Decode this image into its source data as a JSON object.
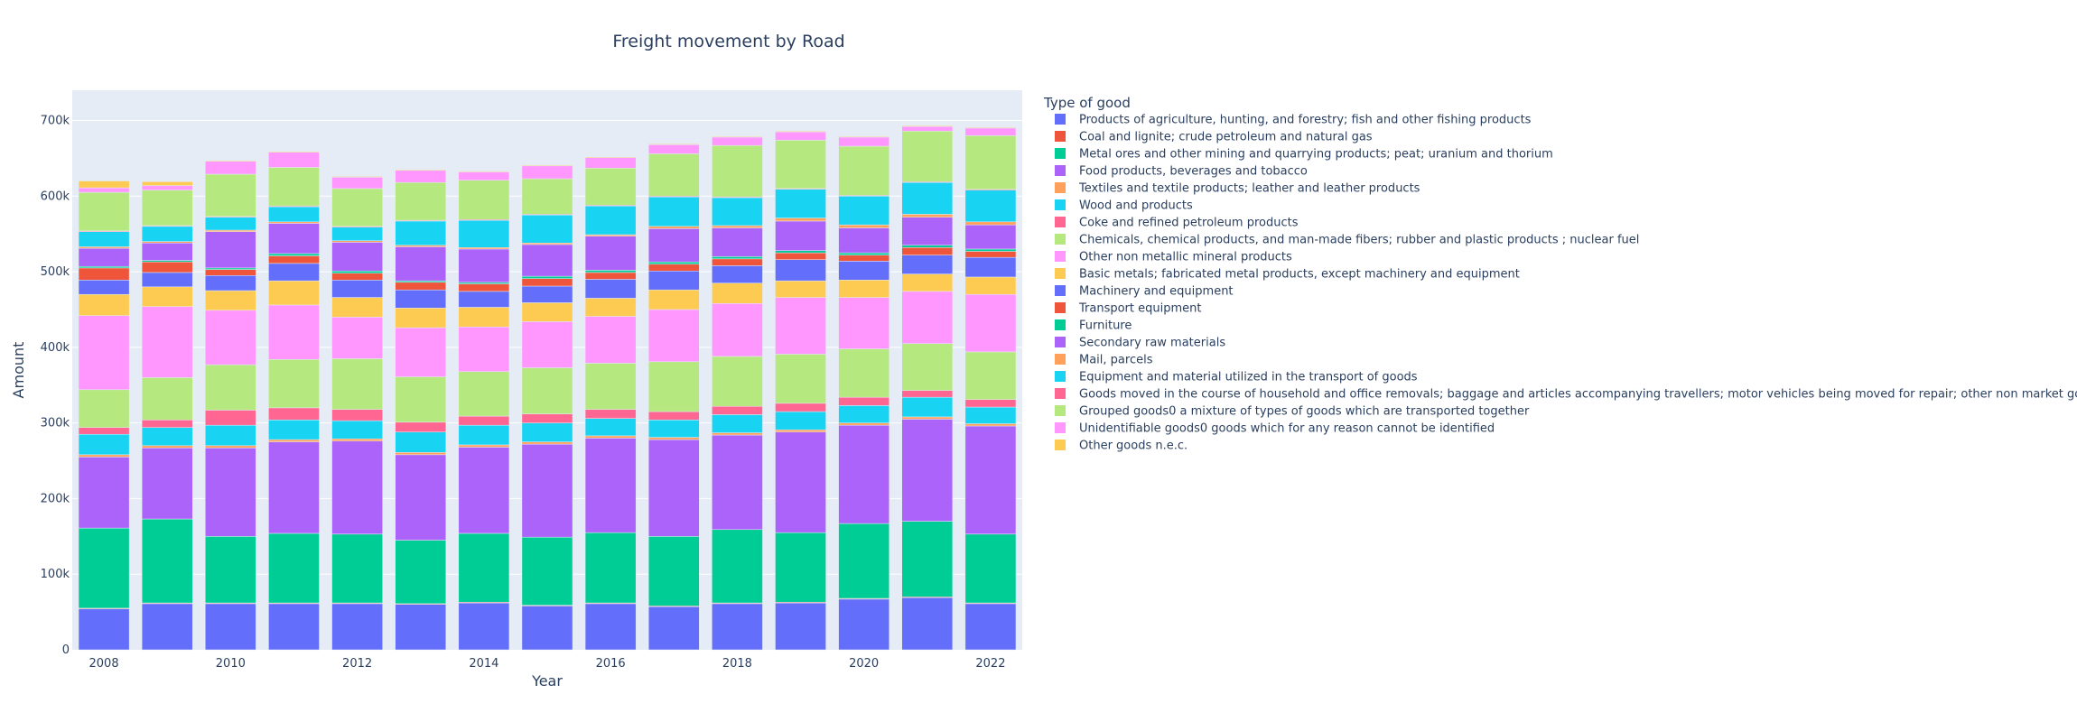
{
  "chart_data": {
    "type": "bar",
    "stacked": true,
    "title": "Freight movement by Road",
    "xlabel": "Year",
    "ylabel": "Amount",
    "legend_title": "Type of good",
    "legend_position": "right",
    "grid": true,
    "ylim": [
      0,
      740000
    ],
    "yticks": [
      0,
      100000,
      200000,
      300000,
      400000,
      500000,
      600000,
      700000
    ],
    "ytick_labels": [
      "0",
      "100k",
      "200k",
      "300k",
      "400k",
      "500k",
      "600k",
      "700k"
    ],
    "xlim": [
      2007.5,
      2022.5
    ],
    "xticks": [
      2008,
      2010,
      2012,
      2014,
      2016,
      2018,
      2020,
      2022
    ],
    "xtick_labels": [
      "2008",
      "2010",
      "2012",
      "2014",
      "2016",
      "2018",
      "2020",
      "2022"
    ],
    "categories": [
      2008,
      2009,
      2010,
      2011,
      2012,
      2013,
      2014,
      2015,
      2016,
      2017,
      2018,
      2019,
      2020,
      2021,
      2022
    ],
    "series": [
      {
        "name": "Products of agriculture, hunting, and forestry; fish and other fishing products",
        "color": "#636efa",
        "values": [
          54000,
          61000,
          61000,
          61000,
          61000,
          60000,
          62000,
          58000,
          61000,
          57000,
          61000,
          62000,
          67000,
          69000,
          61000
        ]
      },
      {
        "name": "Coal and lignite; crude petroleum and natural gas",
        "color": "#EF553B",
        "values": [
          1000,
          1000,
          1000,
          1000,
          1000,
          1000,
          1000,
          1000,
          1000,
          1000,
          1000,
          1000,
          1000,
          1000,
          1000
        ]
      },
      {
        "name": "Metal ores and other mining and quarrying products; peat; uranium and thorium",
        "color": "#00cc96",
        "values": [
          106000,
          111000,
          88000,
          92000,
          91000,
          84000,
          91000,
          90000,
          93000,
          92000,
          97000,
          92000,
          99000,
          100000,
          91000
        ]
      },
      {
        "name": "Food products, beverages and tobacco",
        "color": "#ab63fa",
        "values": [
          94000,
          94000,
          117000,
          121000,
          123000,
          113000,
          114000,
          123000,
          125000,
          128000,
          125000,
          133000,
          130000,
          135000,
          143000
        ]
      },
      {
        "name": "Textiles and textile products; leather and leather products",
        "color": "#FFA15A",
        "values": [
          3000,
          3000,
          3000,
          3000,
          3000,
          3000,
          3000,
          3000,
          3000,
          3000,
          3000,
          3000,
          3000,
          3000,
          3000
        ]
      },
      {
        "name": "Wood and products",
        "color": "#19d3f3",
        "values": [
          27000,
          24000,
          27000,
          26000,
          24000,
          27000,
          26000,
          25000,
          23000,
          23000,
          24000,
          24000,
          23000,
          26000,
          22000
        ]
      },
      {
        "name": "Coke and refined petroleum products",
        "color": "#FF6692",
        "values": [
          9000,
          10000,
          20000,
          16000,
          15000,
          13000,
          12000,
          12000,
          12000,
          11000,
          11000,
          11000,
          11000,
          9000,
          10000
        ]
      },
      {
        "name": "Chemicals, chemical products, and man-made fibers; rubber and plastic products ; nuclear fuel",
        "color": "#B6E880",
        "values": [
          50000,
          56000,
          60000,
          64000,
          67000,
          60000,
          59000,
          61000,
          61000,
          66000,
          66000,
          65000,
          64000,
          62000,
          63000
        ]
      },
      {
        "name": "Other non metallic mineral products",
        "color": "#FF97FF",
        "values": [
          98000,
          94000,
          72000,
          72000,
          55000,
          65000,
          59000,
          61000,
          62000,
          69000,
          70000,
          75000,
          68000,
          69000,
          76000
        ]
      },
      {
        "name": "Basic metals; fabricated metal products, except machinery and equipment",
        "color": "#FECB52",
        "values": [
          28000,
          26000,
          26000,
          32000,
          26000,
          26000,
          26000,
          25000,
          24000,
          26000,
          27000,
          22000,
          23000,
          23000,
          23000
        ]
      },
      {
        "name": "Machinery and equipment",
        "color": "#636efa",
        "values": [
          19000,
          19000,
          20000,
          23000,
          23000,
          24000,
          21000,
          22000,
          25000,
          25000,
          23000,
          28000,
          25000,
          25000,
          26000
        ]
      },
      {
        "name": "Transport equipment",
        "color": "#EF553B",
        "values": [
          16000,
          14000,
          8000,
          10000,
          9000,
          10000,
          10000,
          10000,
          9000,
          9000,
          9000,
          9000,
          8000,
          10000,
          8000
        ]
      },
      {
        "name": "Furniture",
        "color": "#00cc96",
        "values": [
          2000,
          2000,
          2000,
          3000,
          3000,
          2000,
          2000,
          3000,
          3000,
          3000,
          3000,
          3000,
          3000,
          3000,
          3000
        ]
      },
      {
        "name": "Secondary raw materials",
        "color": "#ab63fa",
        "values": [
          24000,
          23000,
          48000,
          40000,
          38000,
          45000,
          44000,
          42000,
          45000,
          44000,
          38000,
          39000,
          33000,
          37000,
          32000
        ]
      },
      {
        "name": "Mail, parcels",
        "color": "#FFA15A",
        "values": [
          2000,
          2000,
          2000,
          2000,
          2000,
          2000,
          2000,
          2000,
          2000,
          3000,
          3000,
          4000,
          4000,
          4000,
          4000
        ]
      },
      {
        "name": "Equipment and material utilized in the transport of goods",
        "color": "#19d3f3",
        "values": [
          20000,
          20000,
          17000,
          20000,
          18000,
          32000,
          36000,
          37000,
          38000,
          39000,
          37000,
          38000,
          38000,
          42000,
          42000
        ]
      },
      {
        "name": "Goods moved in the course of household and office removals; baggage and articles accompanying travellers; motor vehicles being moved for repair; other non market goods n.e.c.",
        "color": "#FF6692",
        "values": [
          1000,
          1000,
          1000,
          1000,
          1000,
          1000,
          1000,
          1000,
          1000,
          1000,
          1000,
          1000,
          1000,
          1000,
          1000
        ]
      },
      {
        "name": "Grouped goods0 a mixture of types of goods which are transported together",
        "color": "#B6E880",
        "values": [
          51000,
          47000,
          56000,
          51000,
          50000,
          50000,
          52000,
          47000,
          49000,
          56000,
          68000,
          64000,
          65000,
          67000,
          71000
        ]
      },
      {
        "name": "Unidentifiable goods0 goods which for any reason cannot be identified",
        "color": "#FF97FF",
        "values": [
          6000,
          6000,
          17000,
          20000,
          15000,
          16000,
          11000,
          17000,
          14000,
          12000,
          11000,
          11000,
          12000,
          6000,
          10000
        ]
      },
      {
        "name": "Other goods n.e.c.",
        "color": "#FECB52",
        "values": [
          9000,
          5000,
          1000,
          1000,
          1000,
          1000,
          1000,
          1000,
          1000,
          1000,
          1000,
          1000,
          1000,
          1000,
          1000
        ]
      }
    ]
  }
}
